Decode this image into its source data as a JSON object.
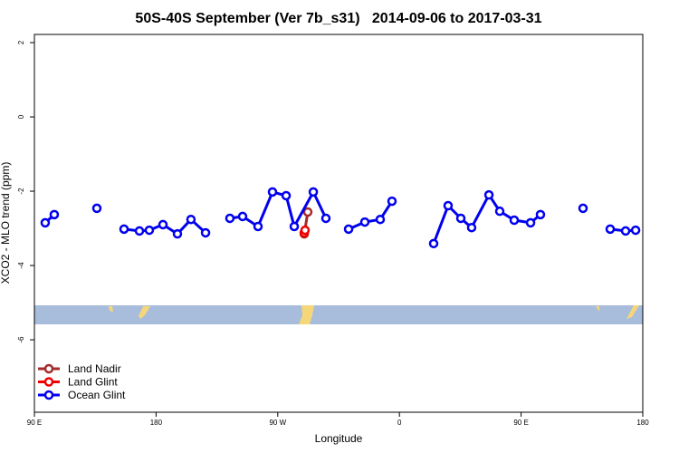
{
  "chart_data": {
    "type": "line",
    "title": "50S-40S September (Ver 7b_s31)   2014-09-06 to 2017-03-31",
    "x_label": "Longitude",
    "y_label": "XCO2 - MLO trend (ppm)",
    "xlim": [
      90,
      540
    ],
    "ylim": [
      -7.95,
      2.22
    ],
    "xticks": [
      {
        "value": 90,
        "label": "90 E"
      },
      180,
      {
        "value": 270,
        "label": "90 W"
      },
      {
        "value": 360,
        "label": "0"
      },
      {
        "value": 450,
        "label": "90 E"
      },
      {
        "value": 540,
        "label": "180"
      }
    ],
    "yticks": [
      2,
      0,
      -2,
      -4,
      -6
    ],
    "grid": false,
    "legend": "bottom-left",
    "series": [
      {
        "name": "Land Nadir",
        "color": "#a52a2a",
        "x": [
          289.6,
          292.2
        ],
        "values": [
          -3.15,
          -2.56
        ]
      },
      {
        "name": "Land Glint",
        "color": "#ee0000",
        "x": [
          289.6,
          290.2
        ],
        "values": [
          -3.12,
          -3.05
        ]
      },
      {
        "name": "Ocean Glint",
        "color": "#0000ee",
        "x": [
          98.0,
          104.7,
          null,
          136.2,
          null,
          156.3,
          167.7,
          175.0,
          185.1,
          195.8,
          205.8,
          216.6,
          null,
          234.6,
          244.0,
          255.4,
          266.1,
          276.2,
          282.2,
          296.3,
          305.6,
          null,
          322.4,
          334.4,
          345.8,
          354.5,
          null,
          385.3,
          396.0,
          405.4,
          413.4,
          426.2,
          434.2,
          444.9,
          457.0,
          464.3,
          null,
          495.8,
          null,
          515.9,
          527.3,
          534.7
        ],
        "values": [
          -2.85,
          -2.63,
          null,
          -2.46,
          null,
          -3.02,
          -3.07,
          -3.05,
          -2.9,
          -3.15,
          -2.76,
          -3.12,
          null,
          -2.73,
          -2.68,
          -2.95,
          -2.02,
          -2.12,
          -2.95,
          -2.02,
          -2.73,
          null,
          -3.02,
          -2.83,
          -2.76,
          -2.27,
          null,
          -3.41,
          -2.39,
          -2.73,
          -2.98,
          -2.1,
          -2.54,
          -2.78,
          -2.85,
          -2.63,
          null,
          -2.46,
          null,
          -3.02,
          -3.07,
          -3.05
        ]
      }
    ]
  }
}
